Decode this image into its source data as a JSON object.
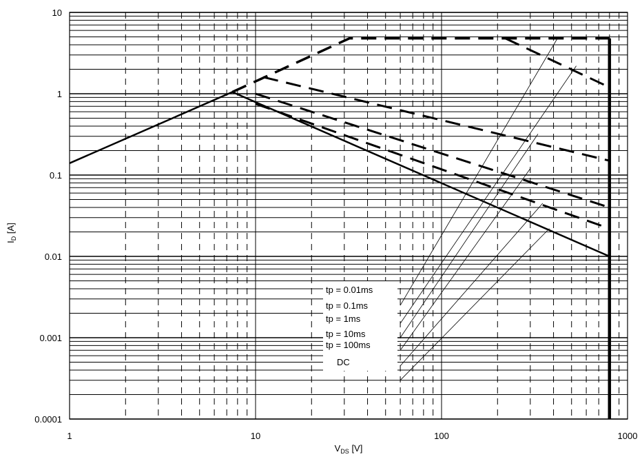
{
  "chart_data": {
    "type": "line",
    "x_scale": "log",
    "y_scale": "log",
    "xlim": [
      1,
      1000
    ],
    "ylim": [
      0.0001,
      10
    ],
    "grid": true,
    "xlabel_main": "V",
    "xlabel_sub": "DS",
    "xlabel_unit": " [V]",
    "ylabel_main": "I",
    "ylabel_sub": "D",
    "ylabel_unit": " [A]",
    "x_ticks": [
      {
        "value": 1,
        "label": "1"
      },
      {
        "value": 10,
        "label": "10"
      },
      {
        "value": 100,
        "label": "100"
      },
      {
        "value": 1000,
        "label": "1000"
      }
    ],
    "y_ticks": [
      {
        "value": 10,
        "label": "10"
      },
      {
        "value": 1,
        "label": "1"
      },
      {
        "value": 0.1,
        "label": "0.1"
      },
      {
        "value": 0.01,
        "label": "0.01"
      },
      {
        "value": 0.001,
        "label": "0.001"
      },
      {
        "value": 0.0001,
        "label": "0.0001"
      }
    ],
    "annotations": [
      "tp = 0.01ms",
      "tp = 0.1ms",
      "tp = 1ms",
      "tp = 10ms",
      "tp = 100ms",
      "DC"
    ],
    "series": [
      {
        "style": "solid",
        "width": 2.5,
        "x": [
          1,
          7.5,
          800
        ],
        "y": [
          0.14,
          1.05,
          0.01
        ]
      },
      {
        "style": "dashed",
        "width": 3.5,
        "x": [
          7.5,
          32,
          800
        ],
        "y": [
          1.05,
          4.8,
          4.8
        ]
      },
      {
        "style": "dashed",
        "width": 3,
        "x": [
          220,
          800
        ],
        "y": [
          4.8,
          1.2
        ]
      },
      {
        "style": "dashed",
        "width": 3,
        "x": [
          11,
          800
        ],
        "y": [
          1.6,
          0.15
        ]
      },
      {
        "style": "dashed",
        "width": 3,
        "x": [
          10,
          800
        ],
        "y": [
          1.0,
          0.04
        ]
      },
      {
        "style": "dashed",
        "width": 3,
        "x": [
          10,
          800
        ],
        "y": [
          0.75,
          0.022
        ]
      },
      {
        "style": "solid",
        "width": 4.5,
        "x": [
          800,
          800
        ],
        "y": [
          4.8,
          0.0001
        ]
      }
    ],
    "tp_lines": [
      {
        "x": [
          60,
          420
        ],
        "y": [
          0.0025,
          4.8
        ]
      },
      {
        "x": [
          60,
          530
        ],
        "y": [
          0.0015,
          2.2
        ]
      },
      {
        "x": [
          60,
          330
        ],
        "y": [
          0.001,
          0.32
        ]
      },
      {
        "x": [
          60,
          300
        ],
        "y": [
          0.0007,
          0.12
        ]
      },
      {
        "x": [
          60,
          350
        ],
        "y": [
          0.00045,
          0.045
        ]
      },
      {
        "x": [
          60,
          380
        ],
        "y": [
          0.0003,
          0.022
        ]
      }
    ]
  }
}
